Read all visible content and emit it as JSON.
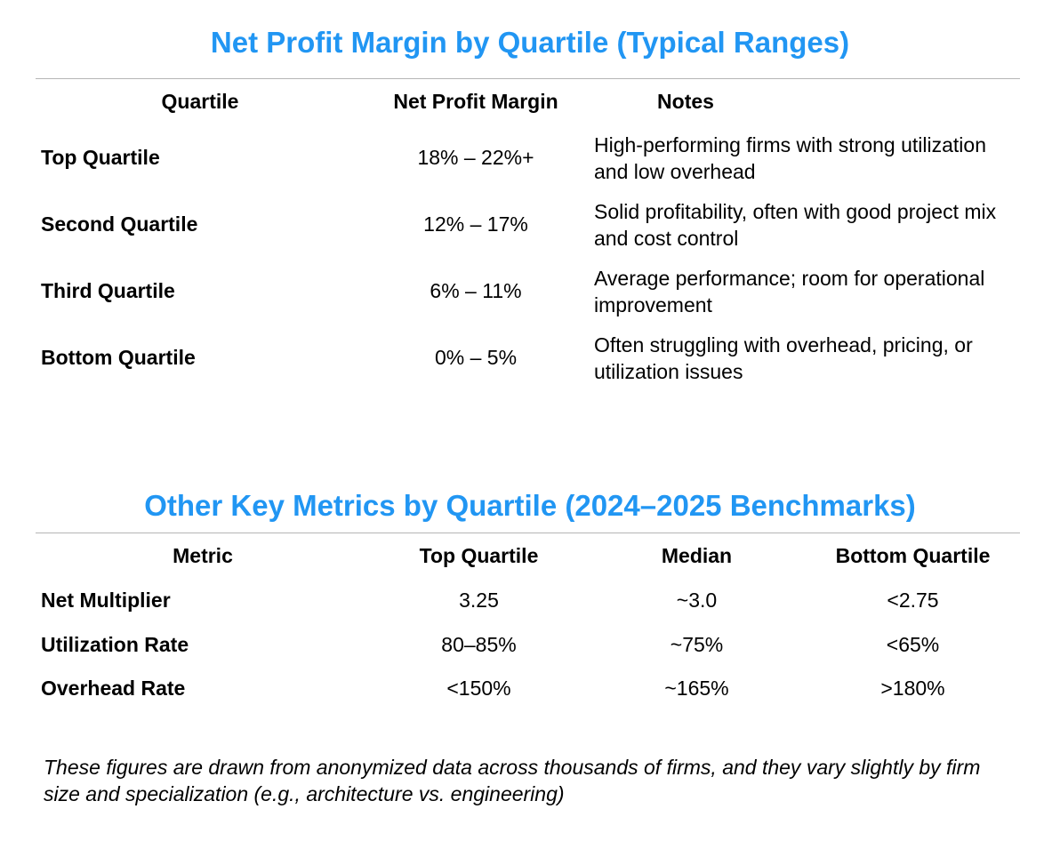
{
  "table1": {
    "title": "Net Profit Margin by Quartile (Typical Ranges)",
    "headers": [
      "Quartile",
      "Net Profit Margin",
      "Notes"
    ],
    "rows": [
      {
        "quartile": "Top Quartile",
        "margin": "18% – 22%+",
        "notes": "High-performing firms with strong utilization and low overhead"
      },
      {
        "quartile": "Second Quartile",
        "margin": "12% – 17%",
        "notes": "Solid profitability, often with good project mix and cost control"
      },
      {
        "quartile": "Third Quartile",
        "margin": "6% – 11%",
        "notes": "Average performance; room for operational improvement"
      },
      {
        "quartile": "Bottom Quartile",
        "margin": "0% – 5%",
        "notes": "Often struggling with overhead, pricing, or utilization issues"
      }
    ]
  },
  "table2": {
    "title": "Other Key Metrics by Quartile (2024–2025 Benchmarks)",
    "headers": [
      "Metric",
      "Top Quartile",
      "Median",
      "Bottom Quartile"
    ],
    "rows": [
      {
        "metric": "Net Multiplier",
        "top": "3.25",
        "median": "~3.0",
        "bottom": "<2.75"
      },
      {
        "metric": "Utilization Rate",
        "top": "80–85%",
        "median": "~75%",
        "bottom": "<65%"
      },
      {
        "metric": "Overhead Rate",
        "top": "<150%",
        "median": "~165%",
        "bottom": ">180%"
      }
    ]
  },
  "footnote": "These figures are drawn from anonymized data across thousands of firms, and they vary slightly by firm size and specialization (e.g., architecture vs. engineering)",
  "colors": {
    "title": "#2196F3",
    "rule": "#b5b5b5"
  }
}
